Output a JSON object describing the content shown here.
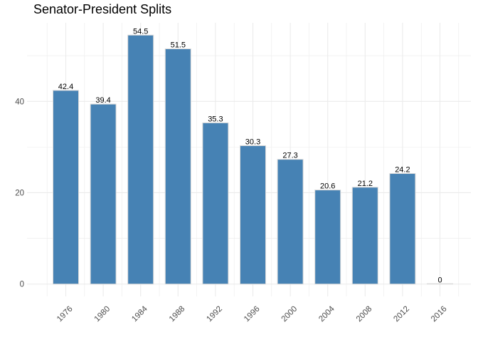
{
  "chart_data": {
    "type": "bar",
    "title": "Senator-President Splits",
    "xlabel": "",
    "ylabel": "",
    "categories": [
      "1976",
      "1980",
      "1984",
      "1988",
      "1992",
      "1996",
      "2000",
      "2004",
      "2008",
      "2012",
      "2016"
    ],
    "values": [
      42.4,
      39.4,
      54.5,
      51.5,
      35.3,
      30.3,
      27.3,
      20.6,
      21.2,
      24.2,
      0
    ],
    "data_labels": [
      "42.4",
      "39.4",
      "54.5",
      "51.5",
      "35.3",
      "30.3",
      "27.3",
      "20.6",
      "21.2",
      "24.2",
      "0"
    ],
    "yticks": [
      0,
      20,
      40
    ],
    "ytick_labels": [
      "0",
      "20",
      "40"
    ],
    "ylim": [
      -2.7,
      57.2
    ],
    "grid": true,
    "legend": "none",
    "bar_color": "#4682b4",
    "bar_outline": "#d9d9d9",
    "grid_color": "#ebebeb"
  }
}
